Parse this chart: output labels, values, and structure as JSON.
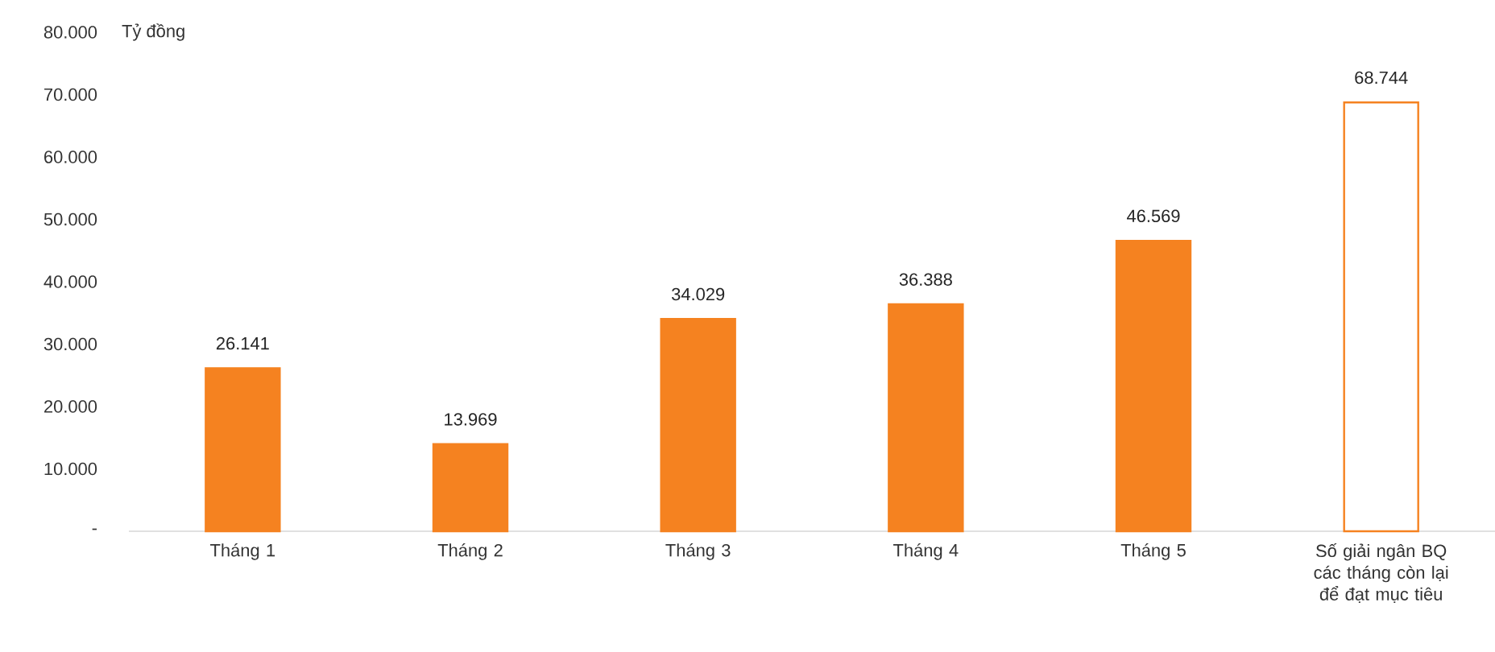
{
  "chart_data": {
    "type": "bar",
    "ylabel": "Tỷ đồng",
    "categories": [
      "Tháng 1",
      "Tháng 2",
      "Tháng 3",
      "Tháng 4",
      "Tháng 5",
      "Số giải ngân BQ các tháng còn lại để đạt mục tiêu"
    ],
    "values": [
      26141,
      13969,
      34029,
      36388,
      46569,
      68744
    ],
    "value_labels": [
      "26.141",
      "13.969",
      "34.029",
      "36.388",
      "46.569",
      "68.744"
    ],
    "color": "#f58220",
    "colors": [
      "#f58220",
      "#f58220",
      "#f58220",
      "#f58220",
      "#f58220",
      "#ffffff"
    ],
    "ylim": [
      0,
      80000
    ],
    "yticks": [
      {
        "value": 0,
        "label": "-"
      },
      {
        "value": 10000,
        "label": "10.000"
      },
      {
        "value": 20000,
        "label": "20.000"
      },
      {
        "value": 30000,
        "label": "30.000"
      },
      {
        "value": 40000,
        "label": "40.000"
      },
      {
        "value": 50000,
        "label": "50.000"
      },
      {
        "value": 60000,
        "label": "60.000"
      },
      {
        "value": 70000,
        "label": "70.000"
      },
      {
        "value": 80000,
        "label": "80.000"
      }
    ],
    "grid": false
  }
}
